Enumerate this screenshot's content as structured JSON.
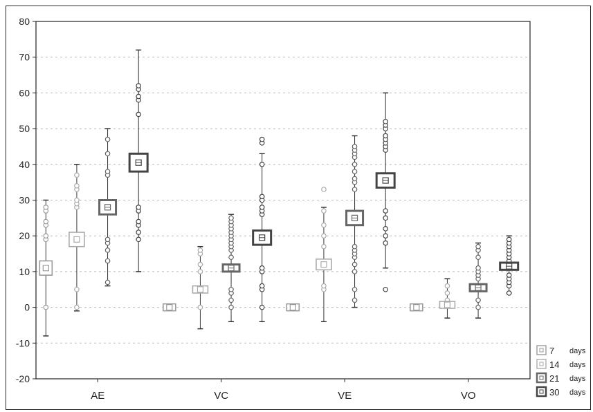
{
  "chart_data": {
    "type": "box",
    "title": "",
    "xlabel": "",
    "ylabel": "",
    "ylim": [
      -20,
      80
    ],
    "yticks": [
      80,
      70,
      60,
      50,
      40,
      30,
      20,
      10,
      0,
      -10,
      -20
    ],
    "grid": true,
    "legend_position": "bottom-right",
    "categories": [
      "AE",
      "VC",
      "VE",
      "VO"
    ],
    "series": [
      {
        "name": "7",
        "unit": "days",
        "color": "#999999",
        "boxes": [
          {
            "category": "AE",
            "center": 11,
            "box": [
              9,
              13
            ],
            "whisker": [
              -8,
              30
            ],
            "points": [
              0,
              19,
              20,
              23,
              24,
              27,
              28
            ]
          },
          {
            "category": "VC",
            "center": 0,
            "box": [
              0,
              0
            ],
            "whisker": [
              0,
              0
            ],
            "points": []
          },
          {
            "category": "VE",
            "center": 0,
            "box": [
              0,
              0
            ],
            "whisker": [
              0,
              0
            ],
            "points": []
          },
          {
            "category": "VO",
            "center": 0,
            "box": [
              0,
              0
            ],
            "whisker": [
              0,
              0
            ],
            "points": []
          }
        ]
      },
      {
        "name": "14",
        "unit": "days",
        "color": "#aaaaaa",
        "boxes": [
          {
            "category": "AE",
            "center": 19,
            "box": [
              17,
              21
            ],
            "whisker": [
              -1,
              40
            ],
            "points": [
              0,
              5,
              28,
              29,
              30,
              33,
              34,
              37
            ]
          },
          {
            "category": "VC",
            "center": 5,
            "box": [
              4,
              6
            ],
            "whisker": [
              -6,
              17
            ],
            "points": [
              0,
              10,
              12,
              15,
              16
            ]
          },
          {
            "category": "VE",
            "center": 12,
            "box": [
              10.5,
              13.5
            ],
            "whisker": [
              -4,
              28
            ],
            "points": [
              5,
              6,
              17,
              20,
              23,
              27,
              33
            ]
          },
          {
            "category": "VO",
            "center": 0.7,
            "box": [
              0,
              1.3
            ],
            "whisker": [
              -3,
              8
            ],
            "points": [
              2,
              4,
              6
            ]
          }
        ]
      },
      {
        "name": "21",
        "unit": "days",
        "color": "#666666",
        "boxes": [
          {
            "category": "AE",
            "center": 28,
            "box": [
              26,
              30
            ],
            "whisker": [
              6,
              50
            ],
            "points": [
              7,
              13,
              16,
              18,
              19,
              27,
              37,
              38,
              43,
              47
            ]
          },
          {
            "category": "VC",
            "center": 11,
            "box": [
              10,
              12
            ],
            "whisker": [
              -4,
              26
            ],
            "points": [
              0,
              2,
              4,
              5,
              14,
              16,
              17,
              18,
              19,
              20,
              21,
              22,
              23,
              24,
              25
            ]
          },
          {
            "category": "VE",
            "center": 25,
            "box": [
              23,
              27
            ],
            "whisker": [
              0,
              48
            ],
            "points": [
              2,
              5,
              10,
              12,
              14,
              15,
              16,
              17,
              33,
              35,
              36,
              38,
              40,
              42,
              43,
              44,
              45
            ]
          },
          {
            "category": "VO",
            "center": 5.5,
            "box": [
              4.5,
              6.5
            ],
            "whisker": [
              -3,
              18
            ],
            "points": [
              0,
              2,
              8,
              9,
              10,
              11,
              14,
              16,
              17
            ]
          }
        ]
      },
      {
        "name": "30",
        "unit": "days",
        "color": "#444444",
        "boxes": [
          {
            "category": "AE",
            "center": 40.5,
            "box": [
              38,
              43
            ],
            "whisker": [
              10,
              72
            ],
            "points": [
              19,
              21,
              23,
              24,
              27,
              28,
              54,
              58,
              59,
              61,
              62
            ]
          },
          {
            "category": "VC",
            "center": 19.5,
            "box": [
              17.5,
              21.5
            ],
            "whisker": [
              -4,
              43
            ],
            "points": [
              0,
              5,
              6,
              10,
              11,
              26,
              27,
              28,
              30,
              31,
              40,
              46,
              47
            ]
          },
          {
            "category": "VE",
            "center": 35.5,
            "box": [
              33.5,
              37.5
            ],
            "whisker": [
              11,
              60
            ],
            "points": [
              5,
              18,
              20,
              22,
              25,
              27,
              44,
              45,
              46,
              47,
              48,
              50,
              51,
              52
            ]
          },
          {
            "category": "VO",
            "center": 11.5,
            "box": [
              10.5,
              12.5
            ],
            "whisker": [
              4,
              20
            ],
            "points": [
              4,
              6,
              7,
              8,
              9,
              13,
              14,
              15,
              16,
              17,
              18,
              19
            ]
          }
        ]
      }
    ]
  }
}
